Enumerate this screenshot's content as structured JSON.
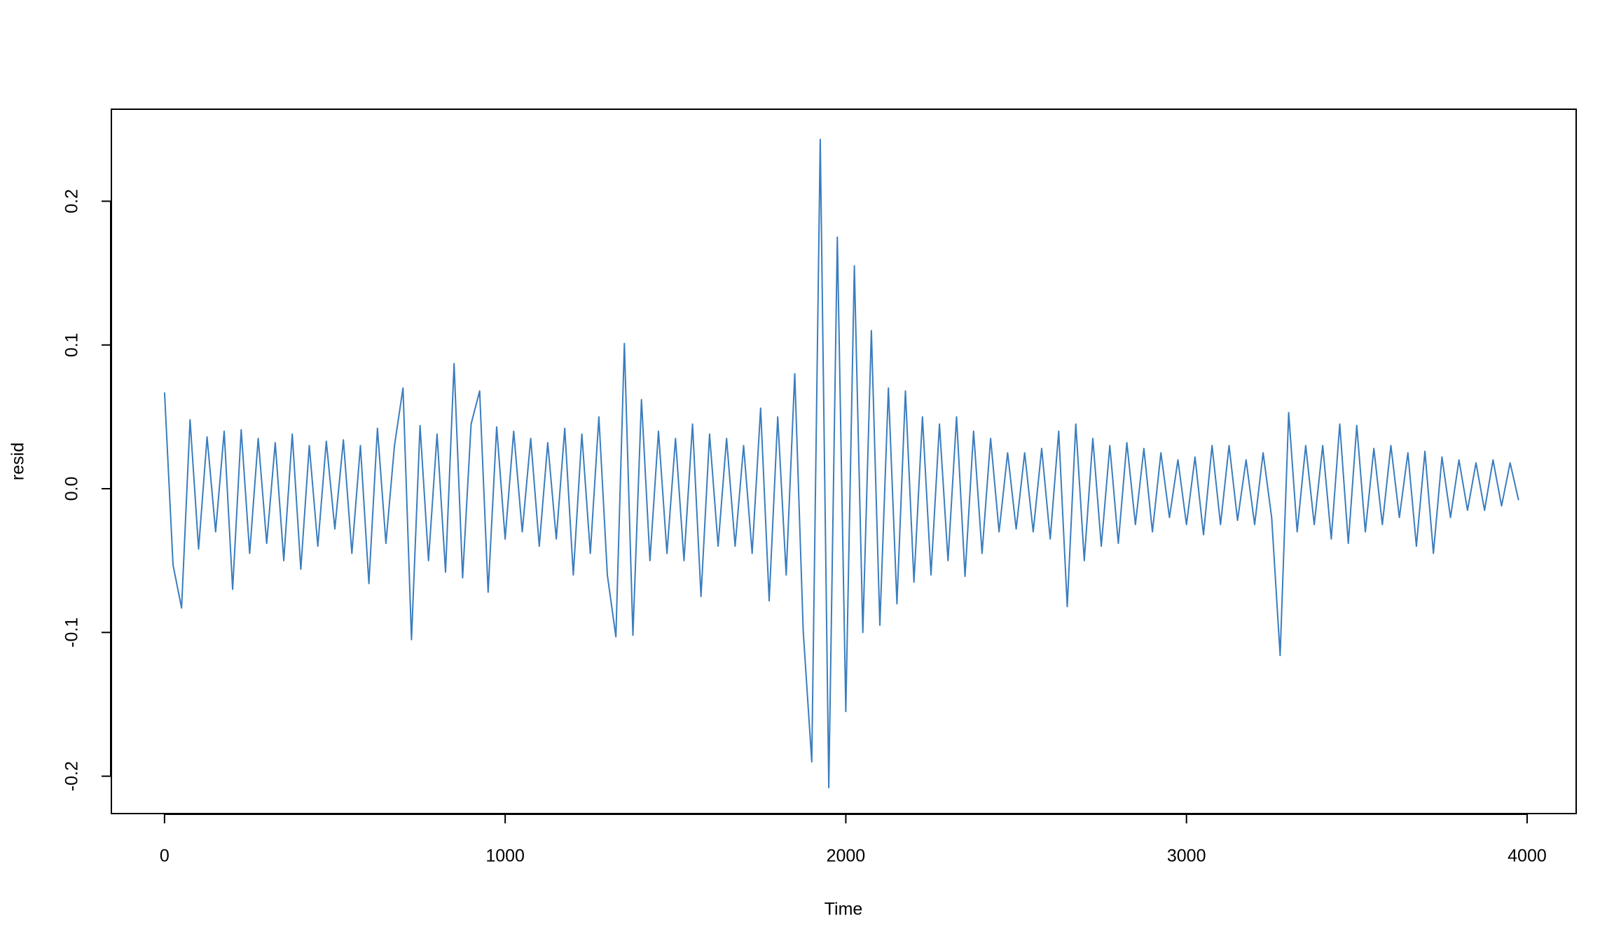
{
  "chart_data": {
    "type": "line",
    "xlabel": "Time",
    "ylabel": "resid",
    "color": "#3a7dbe",
    "x": [
      0,
      25,
      50,
      75,
      100,
      125,
      150,
      175,
      200,
      225,
      250,
      275,
      300,
      325,
      350,
      375,
      400,
      425,
      450,
      475,
      500,
      525,
      550,
      575,
      600,
      625,
      650,
      675,
      700,
      725,
      750,
      775,
      800,
      825,
      850,
      875,
      900,
      925,
      950,
      975,
      1000,
      1025,
      1050,
      1075,
      1100,
      1125,
      1150,
      1175,
      1200,
      1225,
      1250,
      1275,
      1300,
      1325,
      1350,
      1375,
      1400,
      1425,
      1450,
      1475,
      1500,
      1525,
      1550,
      1575,
      1600,
      1625,
      1650,
      1675,
      1700,
      1725,
      1750,
      1775,
      1800,
      1825,
      1850,
      1875,
      1900,
      1925,
      1950,
      1975,
      2000,
      2025,
      2050,
      2075,
      2100,
      2125,
      2150,
      2175,
      2200,
      2225,
      2250,
      2275,
      2300,
      2325,
      2350,
      2375,
      2400,
      2425,
      2450,
      2475,
      2500,
      2525,
      2550,
      2575,
      2600,
      2625,
      2650,
      2675,
      2700,
      2725,
      2750,
      2775,
      2800,
      2825,
      2850,
      2875,
      2900,
      2925,
      2950,
      2975,
      3000,
      3025,
      3050,
      3075,
      3100,
      3125,
      3150,
      3175,
      3200,
      3225,
      3250,
      3275,
      3300,
      3325,
      3350,
      3375,
      3400,
      3425,
      3450,
      3475,
      3500,
      3525,
      3550,
      3575,
      3600,
      3625,
      3650,
      3675,
      3700,
      3725,
      3750,
      3775,
      3800,
      3825,
      3850,
      3875,
      3900,
      3925,
      3950,
      3975
    ],
    "values": [
      0.067,
      -0.053,
      -0.083,
      0.048,
      -0.042,
      0.036,
      -0.03,
      0.04,
      -0.07,
      0.041,
      -0.045,
      0.035,
      -0.038,
      0.032,
      -0.05,
      0.038,
      -0.056,
      0.03,
      -0.04,
      0.033,
      -0.028,
      0.034,
      -0.045,
      0.03,
      -0.066,
      0.042,
      -0.038,
      0.03,
      0.07,
      -0.105,
      0.044,
      -0.05,
      0.038,
      -0.058,
      0.087,
      -0.062,
      0.045,
      0.068,
      -0.072,
      0.043,
      -0.035,
      0.04,
      -0.03,
      0.035,
      -0.04,
      0.032,
      -0.035,
      0.042,
      -0.06,
      0.038,
      -0.045,
      0.05,
      -0.06,
      -0.103,
      0.101,
      -0.102,
      0.062,
      -0.05,
      0.04,
      -0.045,
      0.035,
      -0.05,
      0.045,
      -0.075,
      0.038,
      -0.04,
      0.035,
      -0.04,
      0.03,
      -0.045,
      0.056,
      -0.078,
      0.05,
      -0.06,
      0.08,
      -0.099,
      -0.19,
      0.243,
      -0.208,
      0.175,
      -0.155,
      0.155,
      -0.1,
      0.11,
      -0.095,
      0.07,
      -0.08,
      0.068,
      -0.065,
      0.05,
      -0.06,
      0.045,
      -0.05,
      0.05,
      -0.061,
      0.04,
      -0.045,
      0.035,
      -0.03,
      0.025,
      -0.028,
      0.025,
      -0.03,
      0.028,
      -0.035,
      0.04,
      -0.082,
      0.045,
      -0.05,
      0.035,
      -0.04,
      0.03,
      -0.038,
      0.032,
      -0.025,
      0.028,
      -0.03,
      0.025,
      -0.02,
      0.02,
      -0.025,
      0.022,
      -0.032,
      0.03,
      -0.025,
      0.03,
      -0.022,
      0.02,
      -0.025,
      0.025,
      -0.02,
      -0.116,
      0.053,
      -0.03,
      0.03,
      -0.025,
      0.03,
      -0.035,
      0.045,
      -0.038,
      0.044,
      -0.03,
      0.028,
      -0.025,
      0.03,
      -0.02,
      0.025,
      -0.04,
      0.026,
      -0.045,
      0.022,
      -0.02,
      0.02,
      -0.015,
      0.018,
      -0.015,
      0.02,
      -0.012,
      0.018,
      -0.008
    ],
    "xlim": [
      -156,
      4144
    ],
    "xticks": [
      0,
      1000,
      2000,
      3000,
      4000
    ],
    "ylim": [
      -0.226,
      0.264
    ],
    "yticks": [
      -0.2,
      -0.1,
      {
        "value": 0,
        "label": "0.0"
      },
      0.1,
      0.2
    ]
  }
}
